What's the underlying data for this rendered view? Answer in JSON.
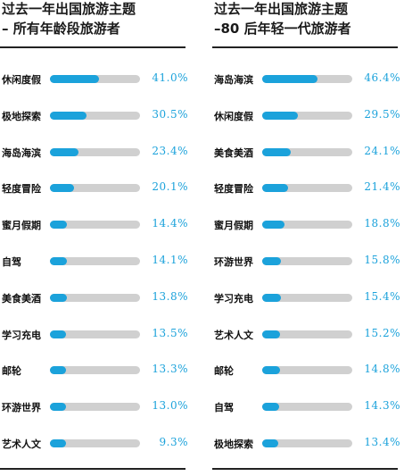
{
  "panels": [
    {
      "title_line1": "过去一年出国旅游主题",
      "title_line2": "– 所有年龄段旅游者",
      "chart_data": {
        "type": "bar",
        "orientation": "horizontal",
        "categories": [
          "休闲度假",
          "极地探索",
          "海岛海滨",
          "轻度冒险",
          "蜜月假期",
          "自驾",
          "美食美酒",
          "学习充电",
          "邮轮",
          "环游世界",
          "艺术人文"
        ],
        "values": [
          41.0,
          30.5,
          23.4,
          20.1,
          14.4,
          14.1,
          13.8,
          13.5,
          13.3,
          13.0,
          9.3
        ],
        "value_labels": [
          "41.0%",
          "30.5%",
          "23.4%",
          "20.1%",
          "14.4%",
          "14.1%",
          "13.8%",
          "13.5%",
          "13.3%",
          "13.0%",
          "9.3%"
        ],
        "unit": "%",
        "xlim": [
          0,
          75
        ]
      }
    },
    {
      "title_line1": "过去一年出国旅游主题",
      "title_line2": "–80 后年轻一代旅游者",
      "chart_data": {
        "type": "bar",
        "orientation": "horizontal",
        "categories": [
          "海岛海滨",
          "休闲度假",
          "美食美酒",
          "轻度冒险",
          "蜜月假期",
          "环游世界",
          "学习充电",
          "艺术人文",
          "邮轮",
          "自驾",
          "极地探索"
        ],
        "values": [
          46.4,
          29.5,
          24.1,
          21.4,
          18.8,
          15.8,
          15.4,
          15.2,
          14.8,
          14.3,
          13.4
        ],
        "value_labels": [
          "46.4%",
          "29.5%",
          "24.1%",
          "21.4%",
          "18.8%",
          "15.8%",
          "15.4%",
          "15.2%",
          "14.8%",
          "14.3%",
          "13.4%"
        ],
        "unit": "%",
        "xlim": [
          0,
          75
        ]
      }
    }
  ],
  "colors": {
    "accent": "#1ba2db",
    "track": "#d0d0d0",
    "text": "#111111"
  }
}
